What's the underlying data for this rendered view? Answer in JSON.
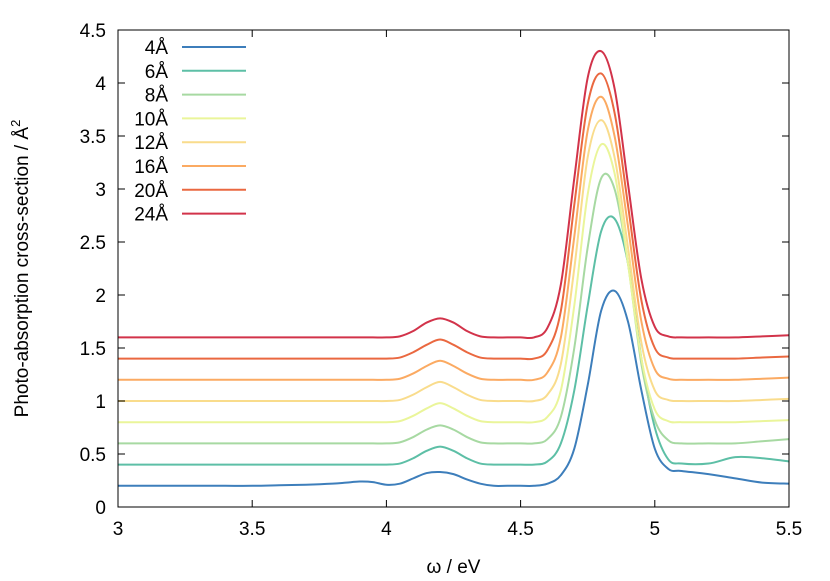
{
  "chart_data": {
    "type": "line",
    "xlabel": "ω / eV",
    "ylabel": "Photo-absorption cross-section / Å",
    "ylabel_superscript": "2",
    "xlim": [
      3,
      5.5
    ],
    "ylim": [
      0,
      4.5
    ],
    "xticks": [
      "3",
      "3.5",
      "4",
      "4.5",
      "5",
      "5.5"
    ],
    "yticks": [
      "0",
      "0.5",
      "1",
      "1.5",
      "2",
      "2.5",
      "3",
      "3.5",
      "4",
      "4.5"
    ],
    "grid": false,
    "legend_position": "top-left",
    "x": [
      3.0,
      3.1,
      3.2,
      3.3,
      3.4,
      3.5,
      3.6,
      3.7,
      3.8,
      3.85,
      3.9,
      3.95,
      4.0,
      4.05,
      4.1,
      4.15,
      4.2,
      4.25,
      4.3,
      4.35,
      4.4,
      4.45,
      4.5,
      4.55,
      4.6,
      4.65,
      4.7,
      4.75,
      4.8,
      4.85,
      4.9,
      4.95,
      5.0,
      5.05,
      5.1,
      5.2,
      5.3,
      5.4,
      5.5
    ],
    "series": [
      {
        "name": "4Å",
        "color": "#3d7ebb",
        "values": [
          0.2,
          0.2,
          0.2,
          0.2,
          0.2,
          0.2,
          0.205,
          0.21,
          0.22,
          0.23,
          0.24,
          0.235,
          0.21,
          0.22,
          0.27,
          0.32,
          0.33,
          0.31,
          0.26,
          0.22,
          0.2,
          0.2,
          0.2,
          0.2,
          0.22,
          0.3,
          0.55,
          1.15,
          1.85,
          2.04,
          1.75,
          1.1,
          0.55,
          0.36,
          0.34,
          0.31,
          0.27,
          0.23,
          0.22
        ]
      },
      {
        "name": "6Å",
        "color": "#5dbfa6",
        "values": [
          0.4,
          0.4,
          0.4,
          0.4,
          0.4,
          0.4,
          0.4,
          0.4,
          0.4,
          0.4,
          0.4,
          0.4,
          0.4,
          0.41,
          0.46,
          0.53,
          0.57,
          0.53,
          0.46,
          0.41,
          0.4,
          0.4,
          0.4,
          0.4,
          0.43,
          0.6,
          1.1,
          1.9,
          2.6,
          2.72,
          2.3,
          1.4,
          0.75,
          0.45,
          0.41,
          0.41,
          0.47,
          0.46,
          0.43
        ]
      },
      {
        "name": "8Å",
        "color": "#a7d9a2",
        "values": [
          0.6,
          0.6,
          0.6,
          0.6,
          0.6,
          0.6,
          0.6,
          0.6,
          0.6,
          0.6,
          0.6,
          0.6,
          0.6,
          0.61,
          0.66,
          0.73,
          0.77,
          0.73,
          0.66,
          0.61,
          0.6,
          0.6,
          0.6,
          0.6,
          0.64,
          0.85,
          1.5,
          2.45,
          3.1,
          3.0,
          2.3,
          1.35,
          0.82,
          0.63,
          0.6,
          0.6,
          0.6,
          0.62,
          0.64
        ]
      },
      {
        "name": "10Å",
        "color": "#eaf59a",
        "values": [
          0.8,
          0.8,
          0.8,
          0.8,
          0.8,
          0.8,
          0.8,
          0.8,
          0.8,
          0.8,
          0.8,
          0.8,
          0.8,
          0.81,
          0.86,
          0.93,
          0.98,
          0.93,
          0.86,
          0.81,
          0.8,
          0.8,
          0.8,
          0.8,
          0.85,
          1.1,
          1.9,
          2.95,
          3.42,
          3.15,
          2.3,
          1.4,
          0.92,
          0.81,
          0.8,
          0.8,
          0.8,
          0.81,
          0.82
        ]
      },
      {
        "name": "12Å",
        "color": "#f9dc8c",
        "values": [
          1.0,
          1.0,
          1.0,
          1.0,
          1.0,
          1.0,
          1.0,
          1.0,
          1.0,
          1.0,
          1.0,
          1.0,
          1.0,
          1.01,
          1.06,
          1.13,
          1.18,
          1.13,
          1.06,
          1.01,
          1.0,
          1.0,
          1.0,
          1.0,
          1.06,
          1.35,
          2.25,
          3.3,
          3.65,
          3.3,
          2.45,
          1.55,
          1.1,
          1.01,
          1.0,
          1.0,
          1.0,
          1.01,
          1.02
        ]
      },
      {
        "name": "16Å",
        "color": "#fbaa62",
        "values": [
          1.2,
          1.2,
          1.2,
          1.2,
          1.2,
          1.2,
          1.2,
          1.2,
          1.2,
          1.2,
          1.2,
          1.2,
          1.2,
          1.21,
          1.26,
          1.33,
          1.38,
          1.33,
          1.26,
          1.21,
          1.2,
          1.2,
          1.2,
          1.2,
          1.27,
          1.6,
          2.55,
          3.55,
          3.87,
          3.5,
          2.65,
          1.75,
          1.3,
          1.21,
          1.2,
          1.2,
          1.2,
          1.21,
          1.22
        ]
      },
      {
        "name": "20Å",
        "color": "#ea6840",
        "values": [
          1.4,
          1.4,
          1.4,
          1.4,
          1.4,
          1.4,
          1.4,
          1.4,
          1.4,
          1.4,
          1.4,
          1.4,
          1.4,
          1.41,
          1.46,
          1.53,
          1.58,
          1.53,
          1.46,
          1.41,
          1.4,
          1.4,
          1.4,
          1.4,
          1.48,
          1.85,
          2.85,
          3.8,
          4.09,
          3.72,
          2.85,
          1.95,
          1.5,
          1.41,
          1.4,
          1.4,
          1.4,
          1.41,
          1.42
        ]
      },
      {
        "name": "24Å",
        "color": "#d2334a",
        "values": [
          1.6,
          1.6,
          1.6,
          1.6,
          1.6,
          1.6,
          1.6,
          1.6,
          1.6,
          1.6,
          1.6,
          1.6,
          1.6,
          1.61,
          1.66,
          1.74,
          1.78,
          1.74,
          1.66,
          1.61,
          1.6,
          1.6,
          1.6,
          1.6,
          1.69,
          2.1,
          3.1,
          4.05,
          4.3,
          3.95,
          3.05,
          2.15,
          1.7,
          1.61,
          1.6,
          1.6,
          1.6,
          1.61,
          1.62
        ]
      }
    ]
  }
}
